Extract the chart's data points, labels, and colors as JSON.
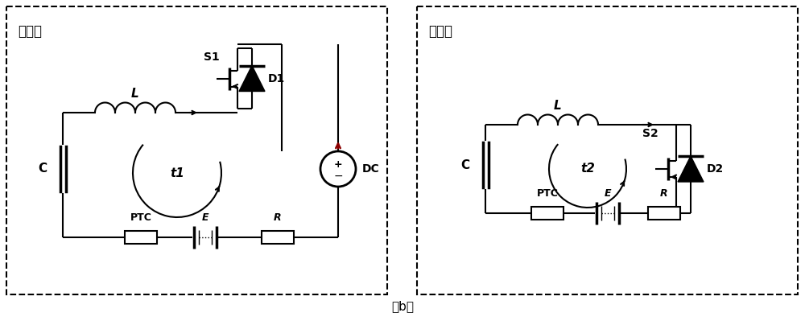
{
  "title_left": "回路一",
  "title_right": "回路二",
  "caption": "（b）",
  "bg_color": "#ffffff",
  "line_color": "#000000",
  "fig_width": 10.0,
  "fig_height": 3.99,
  "lw": 1.5
}
